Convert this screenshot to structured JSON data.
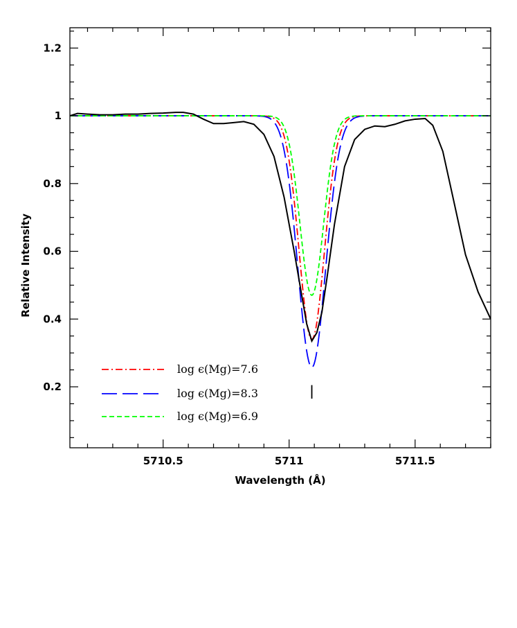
{
  "chart_data": {
    "type": "line",
    "xlabel": "Wavelength (Å)",
    "ylabel": "Relative Intensity",
    "xlim": [
      5710.13,
      5711.8
    ],
    "ylim": [
      0.02,
      1.26
    ],
    "x_ticks": [
      {
        "value": 5710.5,
        "label": "5710.5"
      },
      {
        "value": 5711.0,
        "label": "5711"
      },
      {
        "value": 5711.5,
        "label": "5711.5"
      }
    ],
    "x_minor_step": 0.1,
    "y_ticks": [
      {
        "value": 0.2,
        "label": "0.2"
      },
      {
        "value": 0.4,
        "label": "0.4"
      },
      {
        "value": 0.6,
        "label": "0.6"
      },
      {
        "value": 0.8,
        "label": "0.8"
      },
      {
        "value": 1.0,
        "label": "1"
      },
      {
        "value": 1.2,
        "label": "1.2"
      }
    ],
    "y_minor_step": 0.05,
    "grid": false,
    "legend_position": "bottom-left",
    "marker": {
      "x": 5711.09,
      "y_range": [
        0.165,
        0.205
      ]
    },
    "series": [
      {
        "name": "",
        "color": "#000000",
        "style": "solid",
        "x": [
          5710.13,
          5710.16,
          5710.2,
          5710.25,
          5710.3,
          5710.35,
          5710.4,
          5710.45,
          5710.5,
          5710.55,
          5710.58,
          5710.62,
          5710.66,
          5710.7,
          5710.74,
          5710.78,
          5710.82,
          5710.86,
          5710.9,
          5710.94,
          5710.98,
          5711.02,
          5711.05,
          5711.07,
          5711.09,
          5711.11,
          5711.13,
          5711.15,
          5711.18,
          5711.22,
          5711.26,
          5711.3,
          5711.34,
          5711.38,
          5711.42,
          5711.46,
          5711.5,
          5711.54,
          5711.57,
          5711.61,
          5711.65,
          5711.7,
          5711.75,
          5711.8
        ],
        "y": [
          1.0,
          1.007,
          1.005,
          1.003,
          1.003,
          1.005,
          1.005,
          1.007,
          1.008,
          1.01,
          1.01,
          1.005,
          0.99,
          0.977,
          0.977,
          0.98,
          0.983,
          0.975,
          0.945,
          0.88,
          0.76,
          0.6,
          0.47,
          0.385,
          0.335,
          0.36,
          0.42,
          0.52,
          0.68,
          0.85,
          0.93,
          0.96,
          0.97,
          0.968,
          0.975,
          0.985,
          0.99,
          0.992,
          0.972,
          0.895,
          0.76,
          0.59,
          0.48,
          0.4
        ]
      },
      {
        "name": "log ϵ(Mg)=7.6",
        "color": "#ff0000",
        "style": "dash-dot",
        "model": {
          "continuum": 1.0,
          "center": 5711.09,
          "depth": 0.66,
          "sigma": 0.071
        }
      },
      {
        "name": "log ϵ(Mg)=8.3",
        "color": "#0000ff",
        "style": "long-dash",
        "model": {
          "continuum": 1.0,
          "center": 5711.09,
          "depth": 0.743,
          "sigma": 0.078
        }
      },
      {
        "name": "log ϵ(Mg)=6.9",
        "color": "#00ff00",
        "style": "short-dash",
        "model": {
          "continuum": 1.0,
          "center": 5711.09,
          "depth": 0.53,
          "sigma": 0.066
        }
      }
    ]
  }
}
